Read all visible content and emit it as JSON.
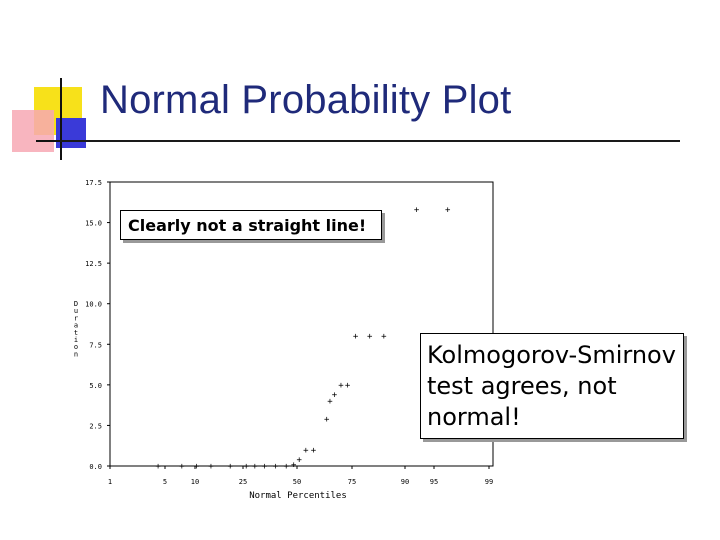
{
  "slide": {
    "title": "Normal Probability Plot"
  },
  "callouts": {
    "straight_line": "Clearly not a straight line!",
    "ks_test": "Kolmogorov-Smirnov test agrees, not normal!"
  },
  "chart_data": {
    "type": "scatter",
    "title": "",
    "xlabel": "Normal Percentiles",
    "ylabel": "Duration",
    "xlim": [
      1,
      99
    ],
    "ylim": [
      0,
      17.5
    ],
    "x_ticks": [
      1,
      5,
      10,
      25,
      50,
      75,
      90,
      95,
      99
    ],
    "y_ticks": [
      0.0,
      2.5,
      5.0,
      7.5,
      10.0,
      12.5,
      15.0,
      17.5
    ],
    "x_tick_labels": [
      "1",
      "5",
      "10",
      "25",
      "50",
      "75",
      "90",
      "95",
      "99"
    ],
    "y_tick_labels": [
      "0.0",
      "2.5",
      "5.0",
      "7.5",
      "10.0",
      "12.5",
      "15.0",
      "17.5"
    ],
    "marker": "+",
    "series": [
      {
        "points": [
          [
            4.5,
            0.0
          ],
          [
            7.8,
            0.0
          ],
          [
            10.5,
            0.0
          ],
          [
            15.0,
            0.0
          ],
          [
            21.0,
            0.0
          ],
          [
            26.5,
            0.0
          ],
          [
            30.5,
            0.0
          ],
          [
            35.0,
            0.0
          ],
          [
            40.0,
            0.0
          ],
          [
            45.0,
            0.0
          ],
          [
            48.5,
            0.1
          ],
          [
            51.0,
            0.4
          ],
          [
            54.0,
            1.0
          ],
          [
            57.5,
            1.0
          ],
          [
            63.5,
            2.9
          ],
          [
            65.0,
            4.0
          ],
          [
            67.0,
            4.4
          ],
          [
            70.0,
            5.0
          ],
          [
            73.0,
            5.0
          ],
          [
            76.0,
            8.0
          ],
          [
            80.0,
            8.0
          ],
          [
            84.0,
            8.0
          ],
          [
            92.0,
            15.8
          ],
          [
            96.0,
            15.8
          ]
        ]
      }
    ]
  }
}
